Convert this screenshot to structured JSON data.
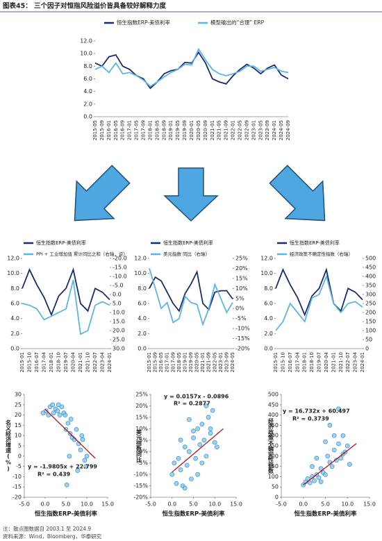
{
  "header": {
    "title": "图表45： 三个因子对恒指风险溢价皆具备较好解释力度"
  },
  "footer": {
    "note": "注：散点图数据自 2003.1 至 2024.9",
    "source": "资料来源：Wind，Bloomberg，华泰研究"
  },
  "chart_data": [
    {
      "type": "line",
      "legend": "top",
      "categories": [
        "2015-05",
        "2015-09",
        "2016-01",
        "2016-05",
        "2016-09",
        "2017-01",
        "2017-05",
        "2017-09",
        "2018-01",
        "2018-05",
        "2018-09",
        "2019-01",
        "2019-05",
        "2019-09",
        "2020-01",
        "2020-05",
        "2020-09",
        "2021-01",
        "2021-05",
        "2021-09",
        "2022-01",
        "2022-05",
        "2022-09",
        "2023-01",
        "2023-05",
        "2023-09",
        "2024-01",
        "2024-05",
        "2024-09"
      ],
      "ylim": [
        0,
        12
      ],
      "yticks": [
        {
          "value": 0,
          "label": "0.0"
        },
        {
          "value": 2,
          "label": "2.0"
        },
        {
          "value": 4,
          "label": "4.0"
        },
        {
          "value": 6,
          "label": "6.0"
        },
        {
          "value": 8,
          "label": "8.0"
        },
        {
          "value": 10,
          "label": "10.0"
        },
        {
          "value": 12,
          "label": "12.0"
        }
      ],
      "series": [
        {
          "name": "恒生指数ERP-美债利率",
          "color": "#1a2a6c",
          "values": [
            8.5,
            8.0,
            9.5,
            9.8,
            8.0,
            7.5,
            6.5,
            6.0,
            4.5,
            5.5,
            6.8,
            7.3,
            7.5,
            8.6,
            8.5,
            10.2,
            8.5,
            6.0,
            5.5,
            5.2,
            6.5,
            7.5,
            8.3,
            7.7,
            6.8,
            7.7,
            8.2,
            6.6,
            6.0
          ]
        },
        {
          "name": "模型输出的“合理” ERP",
          "color": "#5ab4e8",
          "values": [
            7.5,
            8.0,
            7.0,
            8.5,
            6.8,
            7.0,
            6.5,
            5.8,
            4.8,
            5.5,
            6.3,
            7.0,
            7.5,
            8.3,
            8.2,
            10.7,
            9.0,
            7.5,
            6.8,
            6.5,
            6.8,
            7.2,
            8.0,
            8.0,
            7.2,
            7.5,
            7.8,
            7.2,
            7.0
          ]
        }
      ]
    },
    {
      "type": "line",
      "legend": "top",
      "categories": [
        "2015-01",
        "2015-10",
        "2016-07",
        "2017-04",
        "2018-01",
        "2018-10",
        "2019-07",
        "2020-04",
        "2021-01",
        "2021-10",
        "2022-07",
        "2023-04",
        "2024-01"
      ],
      "ylim": [
        0,
        12
      ],
      "yticks": [
        {
          "value": 0,
          "label": "0.0"
        },
        {
          "value": 2,
          "label": "2.0"
        },
        {
          "value": 4,
          "label": "4.0"
        },
        {
          "value": 6,
          "label": "6.0"
        },
        {
          "value": 8,
          "label": "8.0"
        },
        {
          "value": 10,
          "label": "10.0"
        },
        {
          "value": 12,
          "label": "12.0"
        }
      ],
      "y2lim": [
        -20,
        30
      ],
      "y2_inverted": true,
      "y2ticks": [
        {
          "value": -20,
          "label": "-20.0"
        },
        {
          "value": -15,
          "label": "-15.0"
        },
        {
          "value": -10,
          "label": "-10.0"
        },
        {
          "value": -5,
          "label": "-5.0"
        },
        {
          "value": 0,
          "label": "0.0"
        },
        {
          "value": 5,
          "label": "5.0"
        },
        {
          "value": 10,
          "label": "10.0"
        },
        {
          "value": 15,
          "label": "15.0"
        },
        {
          "value": 20,
          "label": "20.0"
        },
        {
          "value": 25,
          "label": "25.0"
        },
        {
          "value": 30,
          "label": "30.0"
        }
      ],
      "series": [
        {
          "name": "恒生指数ERP-美债利率",
          "color": "#1a2a6c",
          "values": [
            8.0,
            10.5,
            8.5,
            6.8,
            4.5,
            7.0,
            8.0,
            10.5,
            6.0,
            5.0,
            8.0,
            7.5,
            6.5
          ]
        },
        {
          "name": "PPI + 工业增加值 累计同比之和（右轴，逆）",
          "color": "#5ab4e8",
          "axis": "y2",
          "values": [
            5,
            6,
            8,
            14,
            12,
            10,
            8,
            -8,
            22,
            20,
            6,
            4,
            6
          ]
        }
      ]
    },
    {
      "type": "line",
      "legend": "top",
      "categories": [
        "2015-01",
        "2015-09",
        "2016-05",
        "2017-01",
        "2017-09",
        "2018-05",
        "2019-01",
        "2019-09",
        "2020-05",
        "2021-01",
        "2021-09",
        "2022-05",
        "2023-01",
        "2023-09",
        "2024-05"
      ],
      "ylim": [
        0,
        12
      ],
      "yticks": [
        {
          "value": 0,
          "label": "0.0"
        },
        {
          "value": 2,
          "label": "2.0"
        },
        {
          "value": 4,
          "label": "4.0"
        },
        {
          "value": 6,
          "label": "6.0"
        },
        {
          "value": 8,
          "label": "8.0"
        },
        {
          "value": 10,
          "label": "10.0"
        },
        {
          "value": 12,
          "label": "12.0"
        }
      ],
      "y2lim": [
        -20,
        25
      ],
      "y2ticks": [
        {
          "value": -20,
          "label": "-20%"
        },
        {
          "value": -15,
          "label": "-15%"
        },
        {
          "value": -10,
          "label": "-10%"
        },
        {
          "value": -5,
          "label": "-5%"
        },
        {
          "value": 0,
          "label": "0%"
        },
        {
          "value": 5,
          "label": "5%"
        },
        {
          "value": 10,
          "label": "10%"
        },
        {
          "value": 15,
          "label": "15%"
        },
        {
          "value": 20,
          "label": "20%"
        },
        {
          "value": 25,
          "label": "25%"
        }
      ],
      "series": [
        {
          "name": "恒生指数ERP-美债利率",
          "color": "#1a2a6c",
          "values": [
            8.0,
            9.5,
            9.0,
            7.5,
            6.0,
            5.0,
            7.3,
            8.6,
            10.2,
            6.0,
            5.2,
            7.5,
            7.7,
            7.7,
            6.6
          ]
        },
        {
          "name": "美元指数 同比（右轴）",
          "color": "#5ab4e8",
          "axis": "y2",
          "values": [
            20,
            10,
            0,
            3,
            -7,
            -5,
            6,
            3,
            2,
            -8,
            0,
            12,
            5,
            -2,
            3
          ]
        }
      ]
    },
    {
      "type": "line",
      "legend": "top",
      "categories": [
        "2015-01",
        "2015-10",
        "2016-07",
        "2017-04",
        "2018-01",
        "2018-10",
        "2019-07",
        "2020-04",
        "2021-01",
        "2021-10",
        "2022-07",
        "2023-04",
        "2024-01"
      ],
      "ylim": [
        0,
        12
      ],
      "yticks": [
        {
          "value": 0,
          "label": "0.0"
        },
        {
          "value": 2,
          "label": "2.0"
        },
        {
          "value": 4,
          "label": "4.0"
        },
        {
          "value": 6,
          "label": "6.0"
        },
        {
          "value": 8,
          "label": "8.0"
        },
        {
          "value": 10,
          "label": "10.0"
        },
        {
          "value": 12,
          "label": "12.0"
        }
      ],
      "y2lim": [
        0,
        500
      ],
      "y2ticks": [
        0,
        50,
        100,
        150,
        200,
        250,
        300,
        350,
        400,
        450,
        500
      ],
      "series": [
        {
          "name": "恒生指数ERP-美债利率",
          "color": "#1a2a6c",
          "values": [
            8.0,
            10.5,
            8.5,
            6.8,
            4.5,
            7.0,
            8.0,
            10.5,
            6.0,
            5.0,
            8.0,
            7.5,
            6.5
          ]
        },
        {
          "name": "经济政策不确定性指数（右轴）",
          "color": "#5ab4e8",
          "axis": "y2",
          "values": [
            100,
            150,
            250,
            200,
            150,
            280,
            300,
            400,
            250,
            200,
            250,
            260,
            230
          ]
        }
      ]
    },
    {
      "type": "scatter",
      "xlabel": "恒生指数ERP-美债利率",
      "ylabel": "名义经济增速(%)",
      "annotations": [
        "y = -1.9805x + 22.799",
        "R² = 0.439"
      ],
      "color": "#7cc3ee",
      "trend_color": "#c00000",
      "xlim": [
        -5,
        15
      ],
      "xticks": [
        {
          "value": -5,
          "label": "-5.0"
        },
        {
          "value": 0,
          "label": "0.0"
        },
        {
          "value": 5,
          "label": "5.0"
        },
        {
          "value": 10,
          "label": "10.0"
        },
        {
          "value": 15,
          "label": "15.0"
        }
      ],
      "ylim": [
        -20,
        30
      ],
      "yticks": [
        -20,
        -15,
        -10,
        -5,
        0,
        5,
        10,
        15,
        20,
        25,
        30
      ],
      "x": [
        -0.5,
        0.2,
        0.8,
        1.2,
        1.8,
        2.5,
        3.0,
        3.5,
        4.0,
        4.5,
        5.0,
        5.5,
        6.0,
        6.5,
        7.0,
        7.5,
        8.0,
        8.5,
        9.0,
        9.5,
        10.0,
        3.2,
        6.2,
        7.8,
        8.8,
        9.8,
        5.8,
        2.0,
        4.8,
        5.2
      ],
      "y": [
        21,
        22,
        20,
        24,
        25,
        23,
        22,
        20,
        24,
        21,
        13,
        16,
        11,
        9,
        8,
        13,
        6,
        3,
        8,
        -2,
        0,
        25,
        18,
        -7,
        10,
        -5,
        0,
        21,
        20,
        -14
      ],
      "trendline": {
        "x": [
          0,
          12
        ],
        "y": [
          22.8,
          -1.0
        ]
      }
    },
    {
      "type": "scatter",
      "xlabel": "恒生指数ERP-美债利率",
      "ylabel": "美元指数同比",
      "annotations": [
        "y = 0.0157x - 0.0896",
        "R² = 0.2877"
      ],
      "color": "#7cc3ee",
      "trend_color": "#c00000",
      "xlim": [
        -5,
        15
      ],
      "xticks": [
        {
          "value": -5,
          "label": "-5.0"
        },
        {
          "value": 0,
          "label": "0.0"
        },
        {
          "value": 5,
          "label": "5.0"
        },
        {
          "value": 10,
          "label": "10.0"
        },
        {
          "value": 15,
          "label": "15.0"
        }
      ],
      "ylim": [
        -20,
        25
      ],
      "yticks": [
        {
          "value": -20,
          "label": "-20%"
        },
        {
          "value": -15,
          "label": "-15%"
        },
        {
          "value": -10,
          "label": "-10%"
        },
        {
          "value": -5,
          "label": "-5%"
        },
        {
          "value": 0,
          "label": "0%"
        },
        {
          "value": 5,
          "label": "5%"
        },
        {
          "value": 10,
          "label": "10%"
        },
        {
          "value": 15,
          "label": "15%"
        },
        {
          "value": 20,
          "label": "20%"
        },
        {
          "value": 25,
          "label": "25%"
        }
      ],
      "x": [
        0,
        0.5,
        1,
        1.5,
        2,
        2.5,
        3,
        3.5,
        4,
        4.5,
        5,
        5.5,
        6,
        6.5,
        7,
        7.5,
        8,
        8.5,
        9,
        9.5,
        10,
        10.5,
        3,
        6,
        8,
        2,
        7,
        9,
        5,
        4
      ],
      "y": [
        -10,
        -5,
        -14,
        -3,
        -8,
        -15,
        2,
        -6,
        0,
        -12,
        6,
        -3,
        10,
        3,
        12,
        5,
        -2,
        15,
        8,
        18,
        4,
        2,
        -16,
        -10,
        20,
        5,
        -5,
        10,
        9,
        14
      ],
      "trendline": {
        "x": [
          0,
          12
        ],
        "y": [
          -9,
          10
        ]
      }
    },
    {
      "type": "scatter",
      "xlabel": "恒生指数ERP-美债利率",
      "ylabel": "经济政策不确定性指数",
      "annotations": [
        "y = 16.732x + 60.497",
        "R² = 0.3739"
      ],
      "color": "#7cc3ee",
      "trend_color": "#c00000",
      "xlim": [
        -5,
        15
      ],
      "xticks": [
        {
          "value": -5,
          "label": "-5.0"
        },
        {
          "value": 0,
          "label": "0.0"
        },
        {
          "value": 5,
          "label": "5.0"
        },
        {
          "value": 10,
          "label": "10.0"
        },
        {
          "value": 15,
          "label": "15.0"
        }
      ],
      "ylim": [
        0,
        500
      ],
      "yticks": [
        0,
        50,
        100,
        150,
        200,
        250,
        300,
        350,
        400,
        450,
        500
      ],
      "x": [
        0,
        0.5,
        1,
        1.5,
        2,
        2.5,
        3,
        3.5,
        4,
        4.5,
        5,
        5.5,
        6,
        6.5,
        7,
        7.5,
        8,
        8.5,
        9,
        9.5,
        10,
        10.5,
        2,
        4,
        6,
        7,
        8,
        9,
        3,
        5
      ],
      "y": [
        60,
        75,
        90,
        70,
        100,
        80,
        110,
        95,
        140,
        120,
        110,
        200,
        170,
        150,
        230,
        180,
        260,
        190,
        300,
        220,
        250,
        160,
        150,
        75,
        350,
        300,
        430,
        210,
        190,
        270
      ],
      "trendline": {
        "x": [
          0,
          12
        ],
        "y": [
          60,
          261
        ]
      }
    }
  ]
}
